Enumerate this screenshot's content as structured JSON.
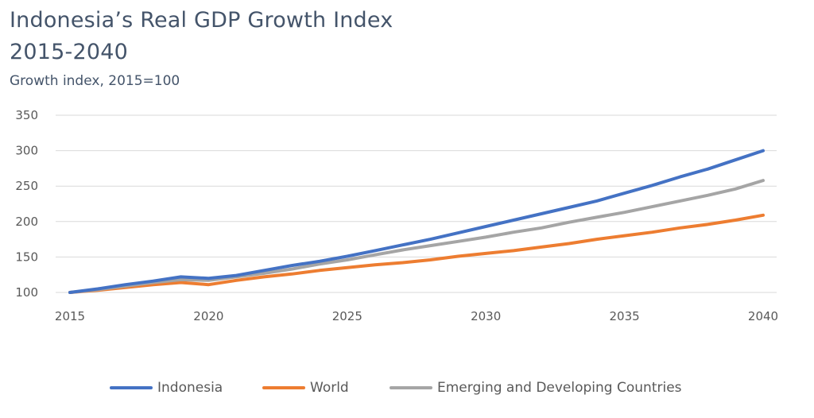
{
  "chart_data": {
    "type": "line",
    "title": "Indonesia’s Real GDP Growth Index",
    "title_line2": "2015-2040",
    "subtitle": "Growth index, 2015=100",
    "xlabel": "",
    "ylabel": "",
    "xlim": [
      2015,
      2040
    ],
    "ylim": [
      100,
      350
    ],
    "y_ticks": [
      100,
      150,
      200,
      250,
      300,
      350
    ],
    "x_ticks": [
      2015,
      2020,
      2025,
      2030,
      2035,
      2040
    ],
    "grid": true,
    "legend_position": "bottom",
    "x": [
      2015,
      2016,
      2017,
      2018,
      2019,
      2020,
      2021,
      2022,
      2023,
      2024,
      2025,
      2026,
      2027,
      2028,
      2029,
      2030,
      2031,
      2032,
      2033,
      2034,
      2035,
      2036,
      2037,
      2038,
      2039,
      2040
    ],
    "series": [
      {
        "name": "Indonesia",
        "color": "#4472c4",
        "values": [
          100,
          105,
          111,
          116,
          122,
          120,
          124,
          131,
          138,
          144,
          151,
          159,
          167,
          175,
          184,
          193,
          202,
          211,
          220,
          229,
          240,
          251,
          263,
          274,
          287,
          300
        ]
      },
      {
        "name": "World",
        "color": "#ed7d31",
        "values": [
          100,
          103,
          107,
          111,
          114,
          111,
          117,
          122,
          126,
          131,
          135,
          139,
          142,
          146,
          151,
          155,
          159,
          164,
          169,
          175,
          180,
          185,
          191,
          196,
          202,
          209
        ]
      },
      {
        "name": "Emerging and Developing Countries",
        "color": "#a5a5a5",
        "values": [
          100,
          104,
          109,
          114,
          118,
          117,
          122,
          127,
          133,
          140,
          146,
          153,
          160,
          166,
          172,
          178,
          185,
          191,
          199,
          206,
          213,
          221,
          229,
          237,
          246,
          258
        ]
      }
    ]
  }
}
